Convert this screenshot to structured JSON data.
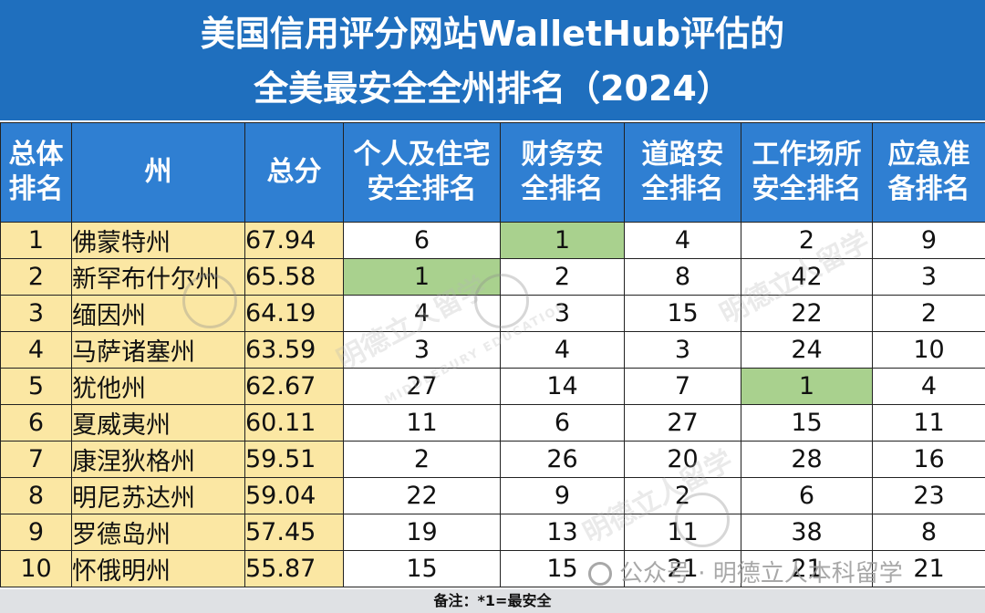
{
  "title": {
    "line1": "美国信用评分网站WalletHub评估的",
    "line2": "全美最安全全州排名（2024）"
  },
  "headers": [
    {
      "l1": "总体",
      "l2": "排名"
    },
    {
      "l1": "州",
      "l2": ""
    },
    {
      "l1": "总分",
      "l2": ""
    },
    {
      "l1": "个人及住宅",
      "l2": "安全排名"
    },
    {
      "l1": "财务安",
      "l2": "全排名"
    },
    {
      "l1": "道路安",
      "l2": "全排名"
    },
    {
      "l1": "工作场所",
      "l2": "安全排名"
    },
    {
      "l1": "应急准",
      "l2": "备排名"
    }
  ],
  "rows": [
    {
      "rank": "1",
      "state": "佛蒙特州",
      "score": "67.94",
      "personal": "6",
      "financial": "1",
      "road": "4",
      "workplace": "2",
      "emergency": "9"
    },
    {
      "rank": "2",
      "state": "新罕布什尔州",
      "score": "65.58",
      "personal": "1",
      "financial": "2",
      "road": "8",
      "workplace": "42",
      "emergency": "3"
    },
    {
      "rank": "3",
      "state": "缅因州",
      "score": "64.19",
      "personal": "4",
      "financial": "3",
      "road": "15",
      "workplace": "22",
      "emergency": "2"
    },
    {
      "rank": "4",
      "state": "马萨诸塞州",
      "score": "63.59",
      "personal": "3",
      "financial": "4",
      "road": "3",
      "workplace": "24",
      "emergency": "10"
    },
    {
      "rank": "5",
      "state": "犹他州",
      "score": "62.67",
      "personal": "27",
      "financial": "14",
      "road": "7",
      "workplace": "1",
      "emergency": "4"
    },
    {
      "rank": "6",
      "state": "夏威夷州",
      "score": "60.11",
      "personal": "11",
      "financial": "6",
      "road": "27",
      "workplace": "15",
      "emergency": "11"
    },
    {
      "rank": "7",
      "state": "康涅狄格州",
      "score": "59.51",
      "personal": "2",
      "financial": "26",
      "road": "20",
      "workplace": "28",
      "emergency": "16"
    },
    {
      "rank": "8",
      "state": "明尼苏达州",
      "score": "59.04",
      "personal": "22",
      "financial": "9",
      "road": "2",
      "workplace": "6",
      "emergency": "23"
    },
    {
      "rank": "9",
      "state": "罗德岛州",
      "score": "57.45",
      "personal": "19",
      "financial": "13",
      "road": "11",
      "workplace": "38",
      "emergency": "8"
    },
    {
      "rank": "10",
      "state": "怀俄明州",
      "score": "55.87",
      "personal": "15",
      "financial": "15",
      "road": "21",
      "workplace": "21",
      "emergency": "21"
    }
  ],
  "note": "备注：*1=最安全",
  "watermark": {
    "cn": "明德立人留学",
    "en": "MIDDLEBURY EDUCATION",
    "footer": "公众号 · 明德立人本科留学"
  },
  "colors": {
    "title_bg": "#1f6fbe",
    "header_bg": "#2f7fd2",
    "left_cols_bg": "#fbe7a3",
    "best_highlight": "#a9d18e",
    "note_bg": "#dfe1e4"
  }
}
